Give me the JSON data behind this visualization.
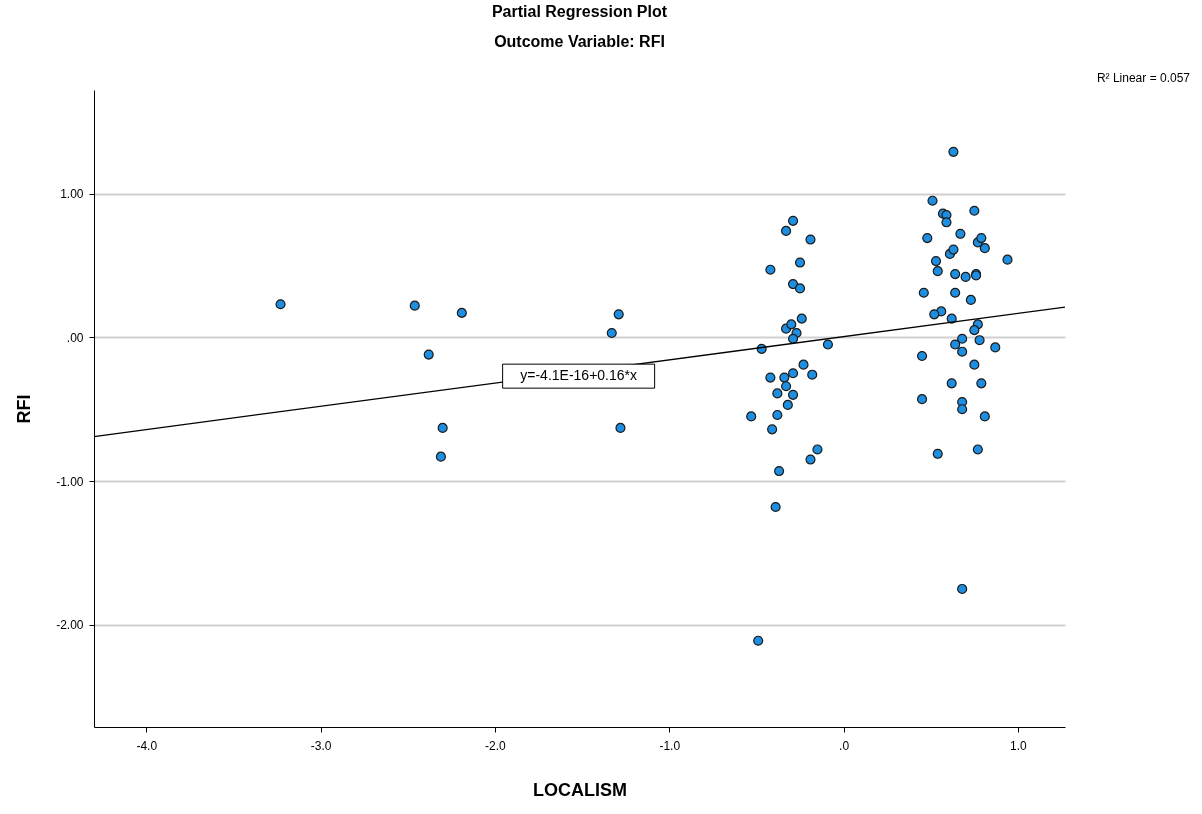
{
  "chart_data": {
    "type": "scatter",
    "title": "Partial Regression Plot",
    "subtitle": "Outcome Variable: RFI",
    "xlabel": "LOCALISM",
    "ylabel": "RFI",
    "xlim": [
      -4.3,
      1.27
    ],
    "ylim": [
      -2.71,
      1.72
    ],
    "xticks": [
      {
        "value": -4,
        "label": "-4.0"
      },
      {
        "value": -3,
        "label": "-3.0"
      },
      {
        "value": -2,
        "label": "-2.0"
      },
      {
        "value": -1,
        "label": "-1.0"
      },
      {
        "value": 0,
        "label": ".0"
      },
      {
        "value": 1,
        "label": "1.0"
      }
    ],
    "yticks": [
      {
        "value": -2,
        "label": "-2.00"
      },
      {
        "value": -1,
        "label": "-1.00"
      },
      {
        "value": 0,
        "label": ".00"
      },
      {
        "value": 1,
        "label": "1.00"
      }
    ],
    "grid": "y",
    "marker": "circle",
    "series": [
      {
        "type": "scatter",
        "color": "#1e8ee0",
        "x": [
          -3.23,
          -2.46,
          -2.38,
          -2.19,
          -2.3,
          -2.31,
          -1.33,
          -1.29,
          -1.28,
          -0.29,
          -0.33,
          -0.19,
          -0.42,
          -0.25,
          -0.29,
          -0.25,
          -0.24,
          -0.33,
          -0.3,
          -0.27,
          -0.29,
          -0.47,
          -0.09,
          -0.23,
          -0.18,
          -0.42,
          -0.34,
          -0.29,
          -0.33,
          -0.38,
          -0.29,
          -0.32,
          -0.53,
          -0.38,
          -0.41,
          -0.15,
          -0.19,
          -0.37,
          -0.39,
          -0.49,
          0.63,
          0.51,
          0.75,
          0.57,
          0.59,
          0.59,
          0.48,
          0.67,
          0.77,
          0.79,
          0.81,
          0.61,
          0.63,
          0.94,
          0.53,
          0.54,
          0.64,
          0.7,
          0.76,
          0.76,
          0.46,
          0.64,
          0.73,
          0.56,
          0.52,
          0.62,
          0.77,
          0.75,
          0.68,
          0.78,
          0.64,
          0.68,
          0.87,
          0.45,
          0.75,
          0.62,
          0.79,
          0.45,
          0.68,
          0.68,
          0.81,
          0.54,
          0.77,
          0.68
        ],
        "values": [
          0.23,
          0.22,
          -0.12,
          0.17,
          -0.63,
          -0.83,
          0.03,
          0.16,
          -0.63,
          0.81,
          0.74,
          0.68,
          0.47,
          0.52,
          0.37,
          0.34,
          0.13,
          0.06,
          0.09,
          0.03,
          -0.01,
          -0.08,
          -0.05,
          -0.19,
          -0.26,
          -0.28,
          -0.28,
          -0.25,
          -0.34,
          -0.39,
          -0.4,
          -0.47,
          -0.55,
          -0.54,
          -0.64,
          -0.78,
          -0.85,
          -0.93,
          -1.18,
          -2.11,
          1.29,
          0.95,
          0.88,
          0.86,
          0.85,
          0.8,
          0.69,
          0.72,
          0.66,
          0.69,
          0.62,
          0.58,
          0.61,
          0.54,
          0.53,
          0.46,
          0.44,
          0.42,
          0.44,
          0.43,
          0.31,
          0.31,
          0.26,
          0.18,
          0.16,
          0.13,
          0.09,
          0.05,
          -0.01,
          -0.02,
          -0.05,
          -0.1,
          -0.07,
          -0.13,
          -0.19,
          -0.32,
          -0.32,
          -0.43,
          -0.45,
          -0.5,
          -0.55,
          -0.81,
          -0.78,
          -1.75
        ]
      },
      {
        "type": "line",
        "marker": "none",
        "color": "#000000",
        "x": [
          -4.3,
          1.27
        ],
        "values": [
          -0.69,
          0.21
        ]
      }
    ],
    "annotations": [
      {
        "text": "y=-4.1E-16+0.16*x",
        "x": -1.52,
        "y": -0.27
      },
      "R² Linear = 0.057"
    ]
  }
}
